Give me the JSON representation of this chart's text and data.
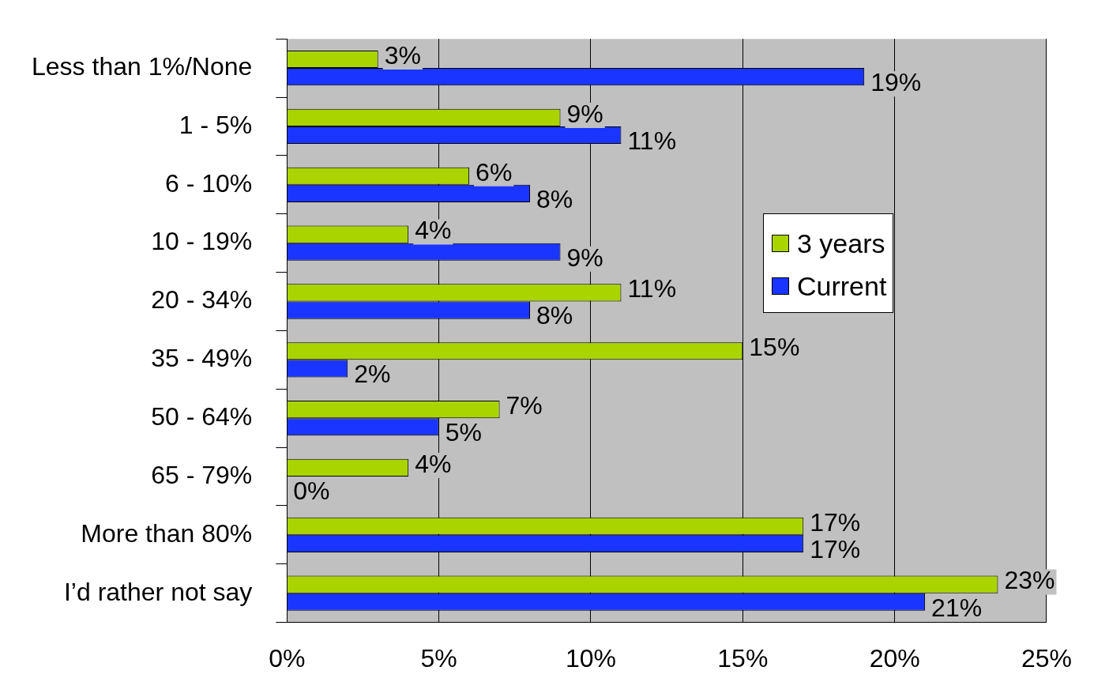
{
  "chart_data": {
    "type": "bar",
    "orientation": "horizontal",
    "categories": [
      "Less than 1%/None",
      "1 - 5%",
      "6 - 10%",
      "10 - 19%",
      "20 - 34%",
      "35 - 49%",
      "50 - 64%",
      "65 - 79%",
      "More than 80%",
      "I’d rather not say"
    ],
    "series": [
      {
        "name": "3 years",
        "color": "#aad400",
        "values": [
          3,
          9,
          6,
          4,
          11,
          15,
          7,
          4,
          17,
          23.4
        ],
        "value_labels": [
          "3%",
          "9%",
          "6%",
          "4%",
          "11%",
          "15%",
          "7%",
          "4%",
          "17%",
          "23%"
        ]
      },
      {
        "name": "Current",
        "color": "#1a35ff",
        "values": [
          19,
          11,
          8,
          9,
          8,
          2,
          5,
          0,
          17,
          21
        ],
        "value_labels": [
          "19%",
          "11%",
          "8%",
          "9%",
          "8%",
          "2%",
          "5%",
          "0%",
          "17%",
          "21%"
        ]
      }
    ],
    "xlim": [
      0,
      25
    ],
    "xticks": [
      {
        "value": 0,
        "label": "0%"
      },
      {
        "value": 5,
        "label": "5%"
      },
      {
        "value": 10,
        "label": "10%"
      },
      {
        "value": 15,
        "label": "15%"
      },
      {
        "value": 20,
        "label": "20%"
      },
      {
        "value": 25,
        "label": "25%"
      }
    ],
    "grid": "x",
    "legend": "right"
  }
}
